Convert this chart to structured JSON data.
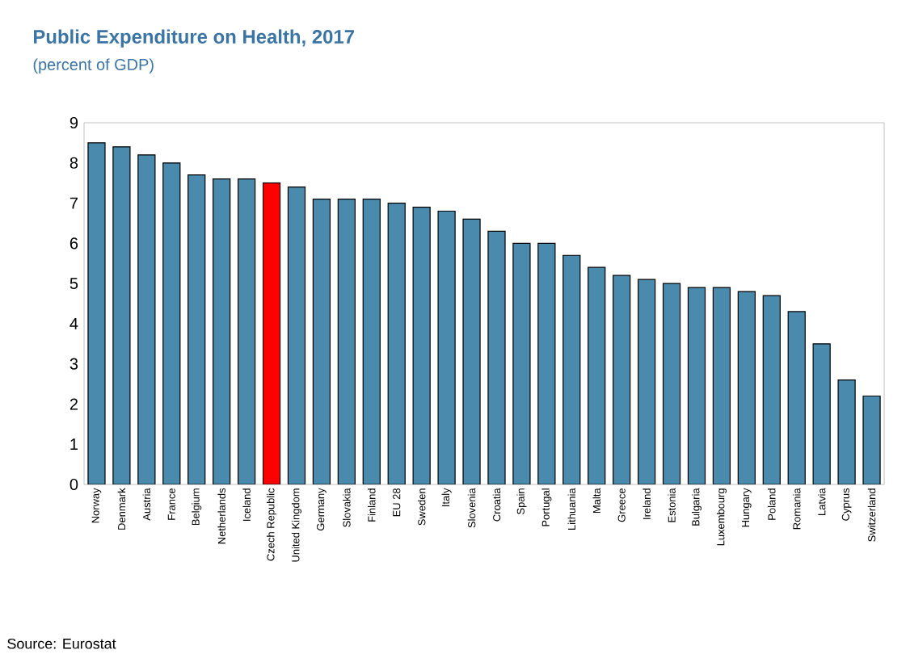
{
  "chart_data": {
    "type": "bar",
    "title": "Public Expenditure on Health, 2017",
    "subtitle": "(percent of GDP)",
    "categories": [
      "Norway",
      "Denmark",
      "Austria",
      "France",
      "Belgium",
      "Netherlands",
      "Iceland",
      "Czech Republic",
      "United Kingdom",
      "Germany",
      "Slovakia",
      "Finland",
      "EU 28",
      "Sweden",
      "Italy",
      "Slovenia",
      "Croatia",
      "Spain",
      "Portugal",
      "Lithuania",
      "Malta",
      "Greece",
      "Ireland",
      "Estonia",
      "Bulgaria",
      "Luxembourg",
      "Hungary",
      "Poland",
      "Romania",
      "Latvia",
      "Cyprus",
      "Switzerland"
    ],
    "values": [
      8.5,
      8.4,
      8.2,
      8.0,
      7.7,
      7.6,
      7.6,
      7.5,
      7.4,
      7.1,
      7.1,
      7.1,
      7.0,
      6.9,
      6.8,
      6.6,
      6.3,
      6.0,
      6.0,
      5.7,
      5.4,
      5.2,
      5.1,
      5.0,
      4.9,
      4.9,
      4.8,
      4.7,
      4.3,
      3.5,
      2.6,
      2.2
    ],
    "colors": [
      "#4a8aad",
      "#4a8aad",
      "#4a8aad",
      "#4a8aad",
      "#4a8aad",
      "#4a8aad",
      "#4a8aad",
      "#ff0000",
      "#4a8aad",
      "#4a8aad",
      "#4a8aad",
      "#4a8aad",
      "#4a8aad",
      "#4a8aad",
      "#4a8aad",
      "#4a8aad",
      "#4a8aad",
      "#4a8aad",
      "#4a8aad",
      "#4a8aad",
      "#4a8aad",
      "#4a8aad",
      "#4a8aad",
      "#4a8aad",
      "#4a8aad",
      "#4a8aad",
      "#4a8aad",
      "#4a8aad",
      "#4a8aad",
      "#4a8aad",
      "#4a8aad",
      "#4a8aad"
    ],
    "ylim": [
      0,
      9
    ],
    "yticks": [
      0,
      1,
      2,
      3,
      4,
      5,
      6,
      7,
      8,
      9
    ],
    "grid": false,
    "annotations": [
      "Source: Eurostat"
    ]
  }
}
